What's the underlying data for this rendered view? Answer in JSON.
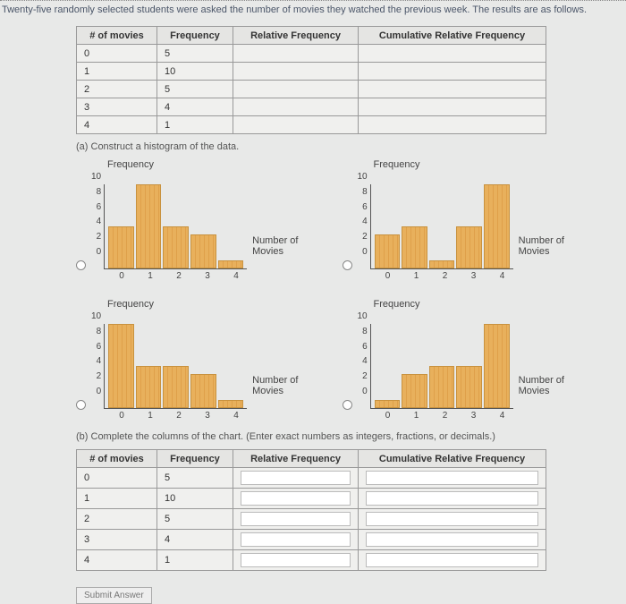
{
  "question_text": "Twenty-five randomly selected students were asked the number of movies they watched the previous week. The results are as follows.",
  "table1": {
    "headers": [
      "# of movies",
      "Frequency",
      "Relative Frequency",
      "Cumulative Relative Frequency"
    ],
    "rows": [
      [
        "0",
        "5",
        "",
        ""
      ],
      [
        "1",
        "10",
        "",
        ""
      ],
      [
        "2",
        "5",
        "",
        ""
      ],
      [
        "3",
        "4",
        "",
        ""
      ],
      [
        "4",
        "1",
        "",
        ""
      ]
    ]
  },
  "part_a": "(a) Construct a histogram of the data.",
  "part_b": "(b) Complete the columns of the chart. (Enter exact numbers as integers, fractions, or decimals.)",
  "chart_common": {
    "y_title": "Frequency",
    "x_title_line1": "Number of",
    "x_title_line2": "Movies",
    "y_ticks": [
      "10",
      "8",
      "6",
      "4",
      "2",
      "0"
    ],
    "x_ticks": [
      "0",
      "1",
      "2",
      "3",
      "4"
    ],
    "y_max": 10,
    "bar_color": "#e8b05c",
    "bar_border": "#c8923f",
    "axis_color": "#555555",
    "background": "#e8e9e8",
    "font_size_ticks": 10,
    "font_size_labels": 11
  },
  "charts": [
    {
      "id": "A",
      "values": [
        5,
        10,
        5,
        4,
        1
      ]
    },
    {
      "id": "B",
      "values": [
        4,
        5,
        1,
        5,
        10
      ]
    },
    {
      "id": "C",
      "values": [
        10,
        5,
        5,
        4,
        1
      ]
    },
    {
      "id": "D",
      "values": [
        1,
        4,
        5,
        5,
        10
      ]
    }
  ],
  "table2": {
    "headers": [
      "# of movies",
      "Frequency",
      "Relative Frequency",
      "Cumulative Relative Frequency"
    ],
    "rows": [
      [
        "0",
        "5"
      ],
      [
        "1",
        "10"
      ],
      [
        "2",
        "5"
      ],
      [
        "3",
        "4"
      ],
      [
        "4",
        "1"
      ]
    ]
  },
  "submit_label": "Submit Answer"
}
